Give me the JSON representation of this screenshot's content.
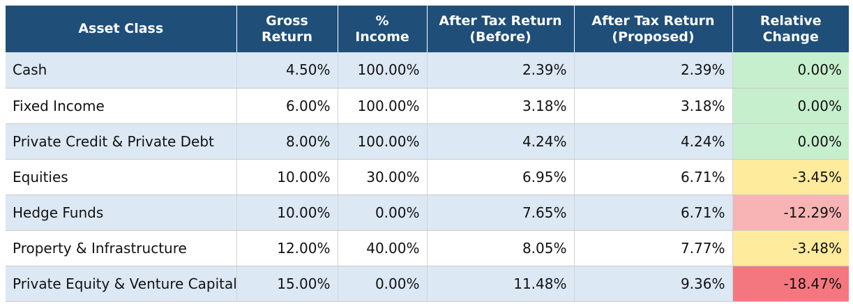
{
  "table": {
    "headers": [
      "Asset Class",
      "Gross Return",
      "% Income",
      "After Tax Return (Before)",
      "After Tax Return (Proposed)",
      "Relative Change"
    ],
    "header_lines": [
      [
        "Asset Class"
      ],
      [
        "Gross",
        "Return"
      ],
      [
        "%",
        "Income"
      ],
      [
        "After Tax Return",
        "(Before)"
      ],
      [
        "After Tax Return",
        "(Proposed)"
      ],
      [
        "Relative",
        "Change"
      ]
    ],
    "rows": [
      {
        "asset": "Cash",
        "gross": "4.50%",
        "income": "100.00%",
        "before": "2.39%",
        "proposed": "2.39%",
        "change": "0.00%",
        "change_color": "#c6efce"
      },
      {
        "asset": "Fixed Income",
        "gross": "6.00%",
        "income": "100.00%",
        "before": "3.18%",
        "proposed": "3.18%",
        "change": "0.00%",
        "change_color": "#c6efce"
      },
      {
        "asset": "Private Credit & Private Debt",
        "gross": "8.00%",
        "income": "100.00%",
        "before": "4.24%",
        "proposed": "4.24%",
        "change": "0.00%",
        "change_color": "#c6efce"
      },
      {
        "asset": "Equities",
        "gross": "10.00%",
        "income": "30.00%",
        "before": "6.95%",
        "proposed": "6.71%",
        "change": "-3.45%",
        "change_color": "#ffeb9c"
      },
      {
        "asset": "Hedge Funds",
        "gross": "10.00%",
        "income": "0.00%",
        "before": "7.65%",
        "proposed": "6.71%",
        "change": "-12.29%",
        "change_color": "#f8b4b4"
      },
      {
        "asset": "Property & Infrastructure",
        "gross": "12.00%",
        "income": "40.00%",
        "before": "8.05%",
        "proposed": "7.77%",
        "change": "-3.48%",
        "change_color": "#ffeb9c"
      },
      {
        "asset": "Private Equity & Venture Capital",
        "gross": "15.00%",
        "income": "0.00%",
        "before": "11.48%",
        "proposed": "9.36%",
        "change": "-18.47%",
        "change_color": "#f4777f"
      }
    ]
  },
  "colors": {
    "header_bg": "#1f4e79",
    "header_text": "#ffffff",
    "row_alt_bg": "#dce8f4",
    "row_plain_bg": "#ffffff"
  }
}
